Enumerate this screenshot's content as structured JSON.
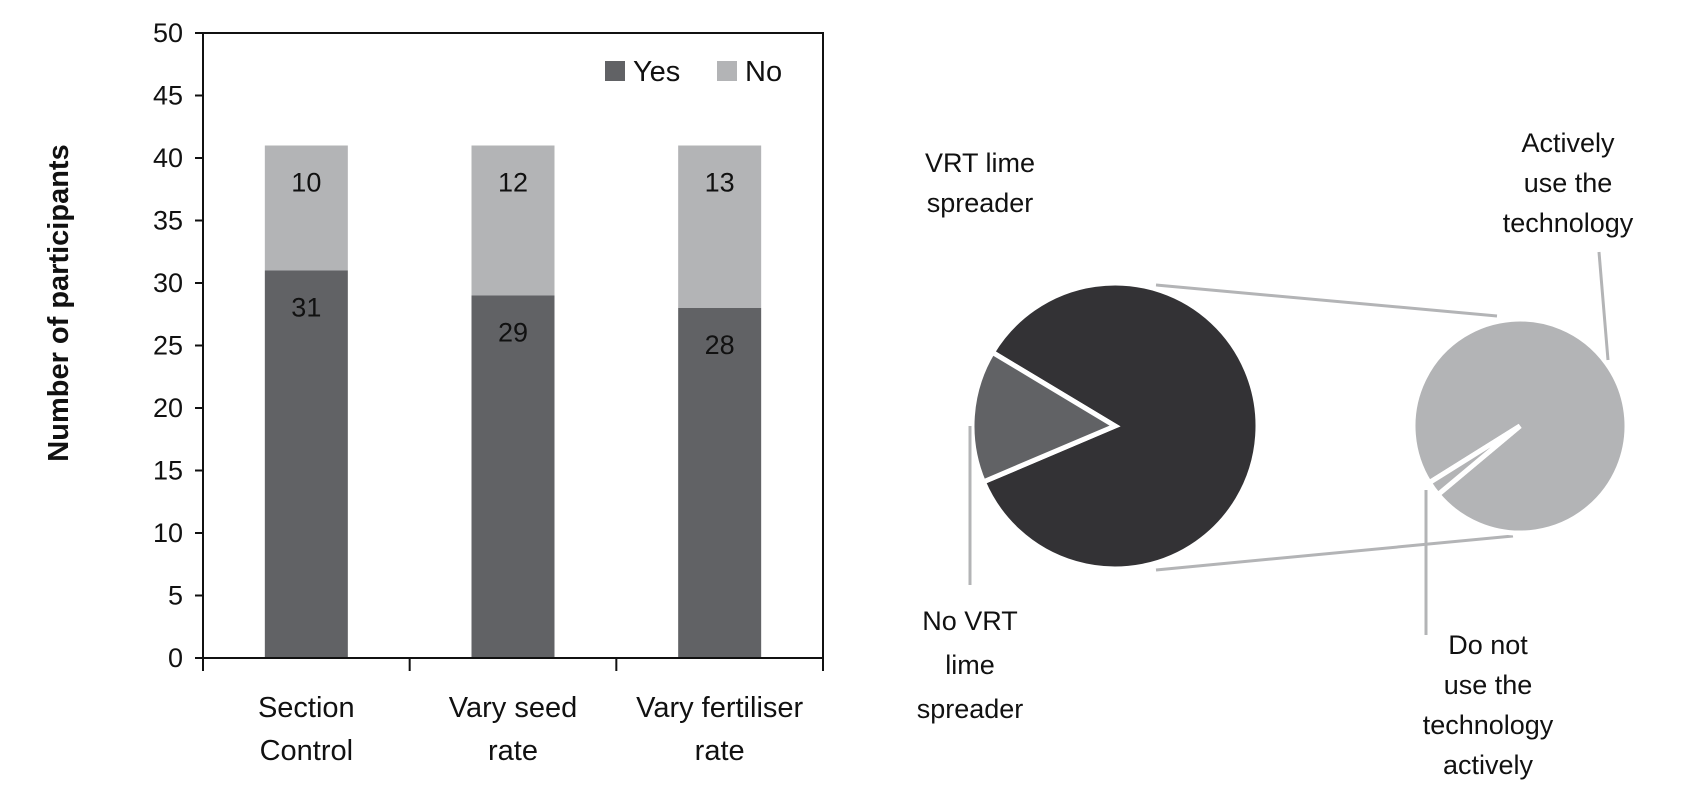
{
  "chart_data": [
    {
      "type": "bar",
      "stacked": true,
      "categories": [
        [
          "Section",
          "Control"
        ],
        [
          "Vary seed",
          "rate"
        ],
        [
          "Vary fertiliser",
          "rate"
        ]
      ],
      "series": [
        {
          "name": "Yes",
          "values": [
            31,
            29,
            28
          ],
          "color": "#616265"
        },
        {
          "name": "No",
          "values": [
            10,
            12,
            13
          ],
          "color": "#b3b4b6"
        }
      ],
      "ylabel": "Number of participants",
      "ylim": [
        0,
        50
      ],
      "yticks": [
        "0",
        "5",
        "10",
        "15",
        "20",
        "25",
        "30",
        "35",
        "40",
        "45",
        "50"
      ],
      "legend_position": "top-right",
      "grid": false
    },
    {
      "type": "pie",
      "subtype": "pie-of-pie",
      "main_pie": {
        "title": [
          "VRT lime",
          "spreader"
        ],
        "slices": [
          {
            "label": [
              "VRT lime",
              "spreader"
            ],
            "value": 85,
            "color": "#333235"
          },
          {
            "label": [
              "No VRT",
              "lime",
              "spreader"
            ],
            "value": 15,
            "color": "#616265"
          }
        ]
      },
      "secondary_pie": {
        "slices": [
          {
            "label": [
              "Actively",
              "use the",
              "technology"
            ],
            "value": 99,
            "color": "#b3b4b6"
          },
          {
            "label": [
              "Do not",
              "use the",
              "technology",
              "actively"
            ],
            "value": 1,
            "color": "#b3b4b6"
          }
        ]
      },
      "connector_color": "#b3b4b6"
    }
  ]
}
